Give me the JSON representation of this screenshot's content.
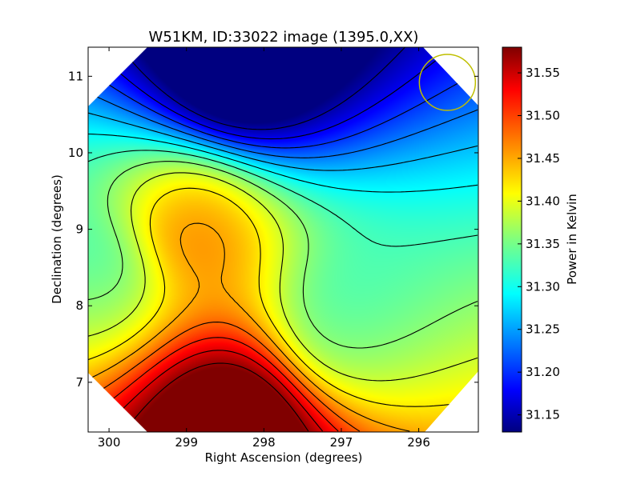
{
  "chart_data": {
    "type": "heatmap",
    "title": "W51KM, ID:33022 image (1395.0,XX)",
    "xlabel": "Right Ascension (degrees)",
    "ylabel": "Declination (degrees)",
    "xlim": [
      300.27,
      295.23
    ],
    "ylim": [
      6.35,
      11.38
    ],
    "x_ticks": [
      300,
      299,
      298,
      297,
      296
    ],
    "x_tick_labels": [
      "300",
      "299",
      "298",
      "297",
      "296"
    ],
    "y_ticks": [
      7,
      8,
      9,
      10,
      11
    ],
    "y_tick_labels": [
      "7",
      "8",
      "9",
      "10",
      "11"
    ],
    "colorbar": {
      "label": "Power in Kelvin",
      "range": [
        31.13,
        31.58
      ],
      "ticks": [
        31.15,
        31.2,
        31.25,
        31.3,
        31.35,
        31.4,
        31.45,
        31.5,
        31.55
      ],
      "tick_labels": [
        "31.15",
        "31.20",
        "31.25",
        "31.30",
        "31.35",
        "31.40",
        "31.45",
        "31.50",
        "31.55"
      ],
      "colormap": "jet"
    },
    "beam_marker": {
      "ra": 295.63,
      "dec": 10.92,
      "color": "#bfbf00"
    },
    "field_features": [
      {
        "name": "minimum",
        "ra": 298.3,
        "dec": 11.0,
        "value": 31.13
      },
      {
        "name": "maximum",
        "ra": 298.4,
        "dec": 6.5,
        "value": 31.58
      },
      {
        "name": "ridge-high",
        "ra": 298.9,
        "dec": 9.1,
        "value": 31.47
      },
      {
        "name": "local-low",
        "ra": 296.95,
        "dec": 7.7,
        "value": 31.31
      },
      {
        "name": "local-low-west",
        "ra": 300.2,
        "dec": 8.4,
        "value": 31.33
      }
    ]
  }
}
